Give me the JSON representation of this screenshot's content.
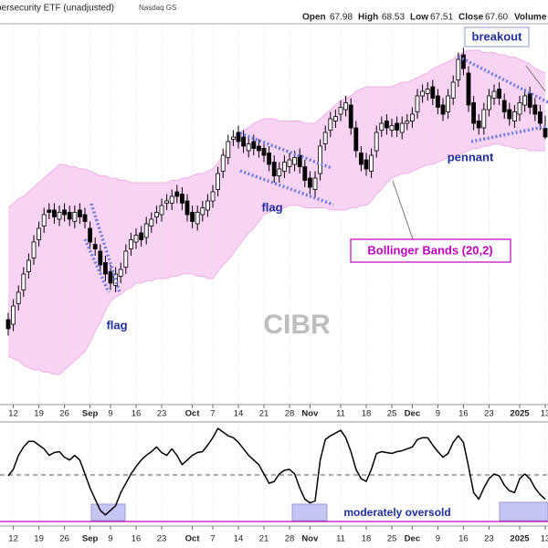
{
  "chart_data": {
    "type": "candlestick",
    "title": "persecurity ETF (unadjusted)",
    "exchange": "Nasdaq GS",
    "header": [
      {
        "label": "Open",
        "value": "67.98"
      },
      {
        "label": "High",
        "value": "68.53"
      },
      {
        "label": "Low",
        "value": "67.51"
      },
      {
        "label": "Close",
        "value": "67.60"
      },
      {
        "label": "Volume"
      }
    ],
    "watermark": "CIBR",
    "annotations": [
      "flag",
      "flag",
      "pennant",
      "breakout",
      "Bollinger Bands (20,2)",
      "moderately oversold"
    ],
    "categories": [
      null,
      "12",
      null,
      null,
      null,
      null,
      "19",
      null,
      null,
      null,
      null,
      "26",
      null,
      null,
      null,
      null,
      "Sep",
      null,
      null,
      null,
      "9",
      null,
      null,
      null,
      null,
      "16",
      null,
      null,
      null,
      null,
      "23",
      null,
      null,
      null,
      null,
      null,
      "Oct",
      null,
      null,
      null,
      "7",
      null,
      null,
      null,
      null,
      "14",
      null,
      null,
      null,
      null,
      "21",
      null,
      null,
      null,
      null,
      "28",
      null,
      null,
      null,
      "Nov",
      null,
      null,
      null,
      null,
      null,
      "11",
      null,
      null,
      null,
      null,
      "18",
      null,
      null,
      null,
      null,
      "25",
      null,
      null,
      null,
      "Dec",
      null,
      null,
      null,
      null,
      "9",
      null,
      null,
      null,
      null,
      "16",
      null,
      null,
      null,
      null,
      "23",
      null,
      null,
      null,
      null,
      null,
      "2025",
      null,
      null,
      null,
      null,
      "13"
    ],
    "open": [
      59.6,
      59.4,
      60.3,
      60.9,
      61.7,
      62.3,
      63.1,
      63.7,
      64.4,
      64.4,
      64.0,
      64.4,
      64.3,
      63.9,
      64.4,
      64.2,
      63.6,
      62.9,
      62.6,
      62.1,
      61.7,
      61.1,
      61.5,
      61.9,
      62.7,
      63.0,
      63.4,
      63.2,
      63.7,
      64.1,
      64.2,
      64.7,
      64.7,
      65.2,
      65.1,
      64.8,
      64.3,
      63.8,
      64.2,
      64.4,
      64.8,
      65.3,
      66.1,
      66.7,
      67.5,
      67.8,
      67.6,
      67.0,
      67.4,
      67.2,
      67.1,
      66.9,
      66.5,
      65.9,
      66.1,
      66.3,
      66.4,
      66.8,
      66.3,
      65.8,
      65.3,
      66.0,
      67.3,
      67.9,
      68.3,
      68.6,
      68.8,
      69.0,
      68.0,
      66.9,
      66.6,
      66.1,
      67.0,
      67.9,
      68.3,
      67.9,
      68.2,
      67.8,
      68.2,
      68.3,
      68.7,
      69.4,
      69.5,
      69.8,
      69.4,
      69.0,
      68.7,
      69.3,
      70.1,
      71.2,
      70.4,
      69.1,
      68.3,
      68.0,
      68.8,
      69.3,
      69.7,
      69.2,
      68.8,
      68.3,
      68.6,
      69.0,
      69.5,
      69.0,
      68.7,
      67.98
    ],
    "high": [
      59.9,
      60.5,
      61.1,
      61.9,
      62.5,
      63.3,
      63.9,
      64.5,
      64.7,
      64.7,
      64.6,
      64.7,
      64.6,
      64.6,
      64.7,
      64.5,
      63.9,
      63.2,
      62.9,
      62.4,
      62.0,
      61.9,
      62.1,
      62.9,
      63.4,
      63.6,
      63.7,
      64.1,
      64.3,
      64.6,
      64.9,
      65.1,
      65.3,
      65.5,
      65.4,
      65.1,
      64.6,
      64.6,
      64.8,
      65.1,
      65.5,
      66.3,
      67.1,
      67.7,
      67.9,
      68.1,
      67.9,
      67.6,
      67.7,
      67.5,
      67.4,
      67.2,
      66.8,
      66.5,
      66.8,
      66.9,
      67.0,
      67.1,
      66.6,
      66.1,
      66.1,
      67.5,
      68.1,
      68.7,
      68.8,
      69.2,
      69.4,
      69.3,
      68.3,
      67.2,
      66.9,
      67.1,
      68.1,
      68.5,
      68.6,
      68.4,
      68.5,
      68.5,
      68.6,
      68.9,
      69.7,
      69.9,
      70.0,
      70.1,
      69.7,
      69.3,
      69.7,
      70.3,
      71.3,
      71.5,
      70.7,
      69.4,
      68.6,
      69.1,
      69.7,
      69.9,
      70.0,
      69.5,
      69.1,
      69.0,
      69.4,
      69.7,
      69.8,
      69.3,
      69.0,
      68.53
    ],
    "low": [
      58.9,
      59.1,
      60.0,
      60.6,
      61.4,
      62.0,
      62.8,
      63.4,
      64.0,
      63.8,
      63.7,
      63.9,
      63.7,
      63.6,
      63.8,
      63.6,
      62.7,
      62.4,
      61.7,
      61.3,
      60.9,
      60.8,
      61.2,
      61.6,
      62.4,
      62.7,
      62.8,
      62.9,
      63.4,
      63.8,
      63.9,
      64.4,
      64.4,
      64.7,
      64.4,
      63.9,
      63.6,
      63.5,
      63.9,
      64.1,
      64.5,
      65.0,
      65.8,
      66.4,
      67.2,
      67.1,
      66.9,
      66.7,
      66.8,
      66.7,
      66.5,
      66.1,
      65.6,
      65.6,
      65.8,
      66.0,
      66.1,
      66.0,
      65.4,
      65.1,
      65.0,
      65.7,
      67.0,
      67.6,
      68.0,
      68.3,
      68.5,
      67.7,
      66.7,
      66.1,
      65.9,
      65.8,
      66.7,
      67.6,
      67.7,
      67.6,
      67.6,
      67.5,
      67.9,
      68.0,
      68.4,
      69.1,
      69.2,
      69.0,
      68.6,
      68.3,
      68.4,
      69.0,
      69.8,
      70.3,
      68.7,
      67.9,
      67.7,
      67.7,
      68.5,
      69.0,
      69.0,
      68.4,
      68.1,
      68.0,
      68.3,
      68.7,
      68.6,
      68.3,
      67.9,
      67.51
    ],
    "close": [
      59.2,
      60.2,
      60.8,
      61.6,
      62.2,
      63.0,
      63.6,
      64.2,
      64.3,
      64.1,
      64.3,
      64.2,
      64.0,
      64.3,
      64.1,
      63.9,
      63.0,
      62.7,
      62.0,
      61.6,
      61.2,
      61.6,
      61.8,
      62.6,
      63.1,
      63.3,
      63.1,
      63.8,
      64.0,
      64.3,
      64.6,
      64.8,
      65.0,
      65.0,
      64.7,
      64.2,
      63.9,
      64.3,
      64.5,
      64.8,
      65.2,
      66.0,
      66.8,
      67.4,
      67.6,
      67.4,
      67.2,
      67.3,
      67.1,
      67.0,
      66.8,
      66.4,
      65.9,
      66.2,
      66.5,
      66.6,
      66.7,
      66.3,
      65.7,
      65.4,
      65.8,
      67.2,
      67.8,
      68.4,
      68.5,
      68.9,
      69.1,
      68.0,
      67.0,
      66.4,
      66.2,
      66.8,
      67.8,
      68.2,
      68.0,
      68.1,
      67.9,
      68.2,
      68.3,
      68.6,
      69.4,
      69.6,
      69.7,
      69.3,
      68.9,
      68.6,
      69.4,
      70.0,
      71.0,
      70.6,
      69.0,
      68.2,
      68.0,
      68.8,
      69.4,
      69.6,
      69.3,
      68.7,
      68.4,
      68.7,
      69.1,
      69.4,
      68.9,
      68.6,
      68.2,
      67.6
    ],
    "up_color": "#ffffff",
    "down_color": "#000000",
    "ylim": [
      56,
      73.2
    ],
    "bands": {
      "color": "#f9d3f4",
      "line_color": "#eeb0e6",
      "upper": [
        64.5,
        64.7,
        64.9,
        65.0,
        65.2,
        65.4,
        65.6,
        65.8,
        66.0,
        66.2,
        66.4,
        66.4,
        66.3,
        66.3,
        66.2,
        66.2,
        66.1,
        66.0,
        65.9,
        65.9,
        65.8,
        65.8,
        65.7,
        65.7,
        65.6,
        65.6,
        65.6,
        65.6,
        65.6,
        65.6,
        65.6,
        65.6,
        65.7,
        65.7,
        65.8,
        65.8,
        65.9,
        66.0,
        66.0,
        66.1,
        66.2,
        66.5,
        66.8,
        67.2,
        67.5,
        67.8,
        67.9,
        68.0,
        68.2,
        68.3,
        68.4,
        68.4,
        68.4,
        68.3,
        68.3,
        68.3,
        68.3,
        68.3,
        68.2,
        68.2,
        68.2,
        68.4,
        68.6,
        68.8,
        69.0,
        69.2,
        69.3,
        69.4,
        69.6,
        69.7,
        69.8,
        69.8,
        69.8,
        69.8,
        69.8,
        69.8,
        69.9,
        70.0,
        70.0,
        70.1,
        70.2,
        70.3,
        70.4,
        70.6,
        70.7,
        70.8,
        70.9,
        71.0,
        71.2,
        71.3,
        71.4,
        71.4,
        71.4,
        71.3,
        71.3,
        71.3,
        71.2,
        71.2,
        71.1,
        71.1,
        71.0,
        70.9,
        70.8,
        70.6,
        70.5,
        70.4
      ],
      "lower": [
        58.0,
        57.9,
        57.8,
        57.6,
        57.5,
        57.4,
        57.4,
        57.3,
        57.3,
        57.2,
        57.2,
        57.4,
        57.6,
        57.8,
        58.0,
        58.2,
        58.6,
        59.1,
        59.5,
        60.0,
        60.4,
        60.6,
        60.7,
        60.9,
        61.0,
        61.2,
        61.2,
        61.3,
        61.3,
        61.4,
        61.4,
        61.4,
        61.5,
        61.5,
        61.6,
        61.6,
        61.6,
        61.5,
        61.5,
        61.4,
        61.4,
        61.7,
        62.0,
        62.2,
        62.5,
        62.8,
        63.1,
        63.4,
        63.6,
        63.9,
        64.2,
        64.3,
        64.4,
        64.4,
        64.5,
        64.6,
        64.6,
        64.6,
        64.5,
        64.5,
        64.5,
        64.5,
        64.5,
        64.4,
        64.4,
        64.4,
        64.4,
        64.5,
        64.5,
        64.6,
        64.6,
        64.8,
        65.1,
        65.3,
        65.6,
        65.8,
        65.9,
        66.0,
        66.0,
        66.1,
        66.2,
        66.3,
        66.4,
        66.4,
        66.5,
        66.6,
        66.7,
        66.8,
        66.8,
        66.9,
        67.0,
        67.1,
        67.1,
        67.2,
        67.2,
        67.3,
        67.3,
        67.2,
        67.2,
        67.1,
        67.1,
        67.1,
        67.0,
        67.0,
        67.0,
        67.0
      ]
    },
    "indicator": {
      "color": "#000000",
      "ylim": [
        0,
        100
      ],
      "values": [
        49,
        56,
        71,
        80,
        86,
        86,
        82,
        78,
        71,
        74,
        75,
        69,
        66,
        71,
        66,
        51,
        36,
        24,
        12,
        7,
        12,
        17,
        31,
        41,
        51,
        59,
        66,
        71,
        75,
        80,
        74,
        71,
        78,
        71,
        61,
        66,
        71,
        74,
        75,
        82,
        90,
        100,
        96,
        92,
        90,
        85,
        78,
        71,
        66,
        61,
        51,
        41,
        43,
        51,
        55,
        56,
        51,
        36,
        24,
        20,
        22,
        66,
        88,
        92,
        95,
        98,
        90,
        75,
        56,
        46,
        43,
        56,
        73,
        75,
        74,
        73,
        75,
        76,
        78,
        80,
        88,
        90,
        90,
        82,
        75,
        69,
        73,
        85,
        92,
        85,
        59,
        31,
        24,
        36,
        46,
        51,
        49,
        39,
        33,
        31,
        46,
        51,
        46,
        36,
        29,
        24
      ],
      "reference_lines": [
        50,
        0
      ],
      "reference_colors": [
        "#777777",
        "#c000c0"
      ],
      "reference_dash": [
        true,
        false
      ]
    },
    "grid": true
  }
}
